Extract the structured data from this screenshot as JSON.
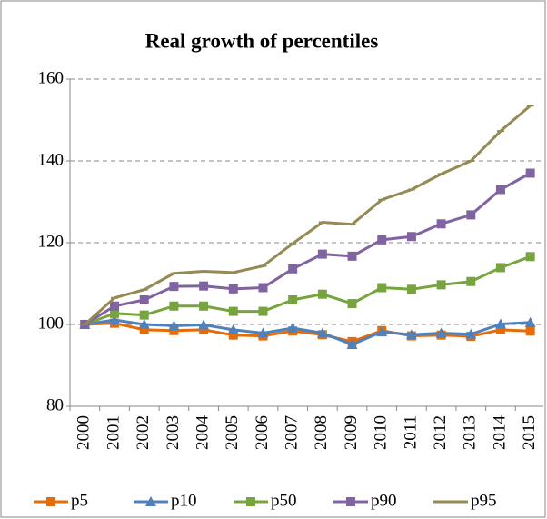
{
  "chart_data": {
    "type": "line",
    "title": "Real growth of percentiles",
    "categories": [
      "2000",
      "2001",
      "2002",
      "2003",
      "2004",
      "2005",
      "2006",
      "2007",
      "2008",
      "2009",
      "2010",
      "2011",
      "2012",
      "2013",
      "2014",
      "2015"
    ],
    "series": [
      {
        "name": "p5",
        "color": "#e46c0a",
        "marker": "square",
        "values": [
          100,
          100.3,
          98.7,
          98.5,
          98.7,
          97.4,
          97.2,
          98.4,
          97.5,
          95.8,
          98.5,
          97.2,
          97.4,
          97.1,
          98.7,
          98.4
        ]
      },
      {
        "name": "p10",
        "color": "#4f81bd",
        "marker": "triangle",
        "values": [
          100,
          101.1,
          100,
          99.7,
          99.9,
          98.7,
          97.9,
          99.1,
          97.9,
          95.1,
          98.2,
          97.5,
          97.9,
          97.6,
          100.1,
          100.5
        ]
      },
      {
        "name": "p50",
        "color": "#77a43f",
        "marker": "square",
        "values": [
          100,
          102.7,
          102.3,
          104.5,
          104.5,
          103.2,
          103.2,
          106,
          107.4,
          105.1,
          109,
          108.6,
          109.7,
          110.5,
          113.9,
          116.6
        ]
      },
      {
        "name": "p90",
        "color": "#8064a2",
        "marker": "square",
        "values": [
          100,
          104.5,
          106,
          109.3,
          109.4,
          108.7,
          109,
          113.6,
          117.2,
          116.7,
          120.7,
          121.5,
          124.6,
          126.8,
          133,
          137
        ]
      },
      {
        "name": "p95",
        "color": "#948a54",
        "marker": "dash",
        "values": [
          100,
          106.5,
          108.5,
          112.5,
          113,
          112.7,
          114.3,
          119.8,
          125,
          124.5,
          130.5,
          133,
          136.8,
          140,
          147.3,
          153.5
        ]
      }
    ],
    "ylim": [
      80,
      160
    ],
    "yticks": [
      80,
      100,
      120,
      140,
      160
    ],
    "grid": true,
    "legend": "bottom"
  }
}
